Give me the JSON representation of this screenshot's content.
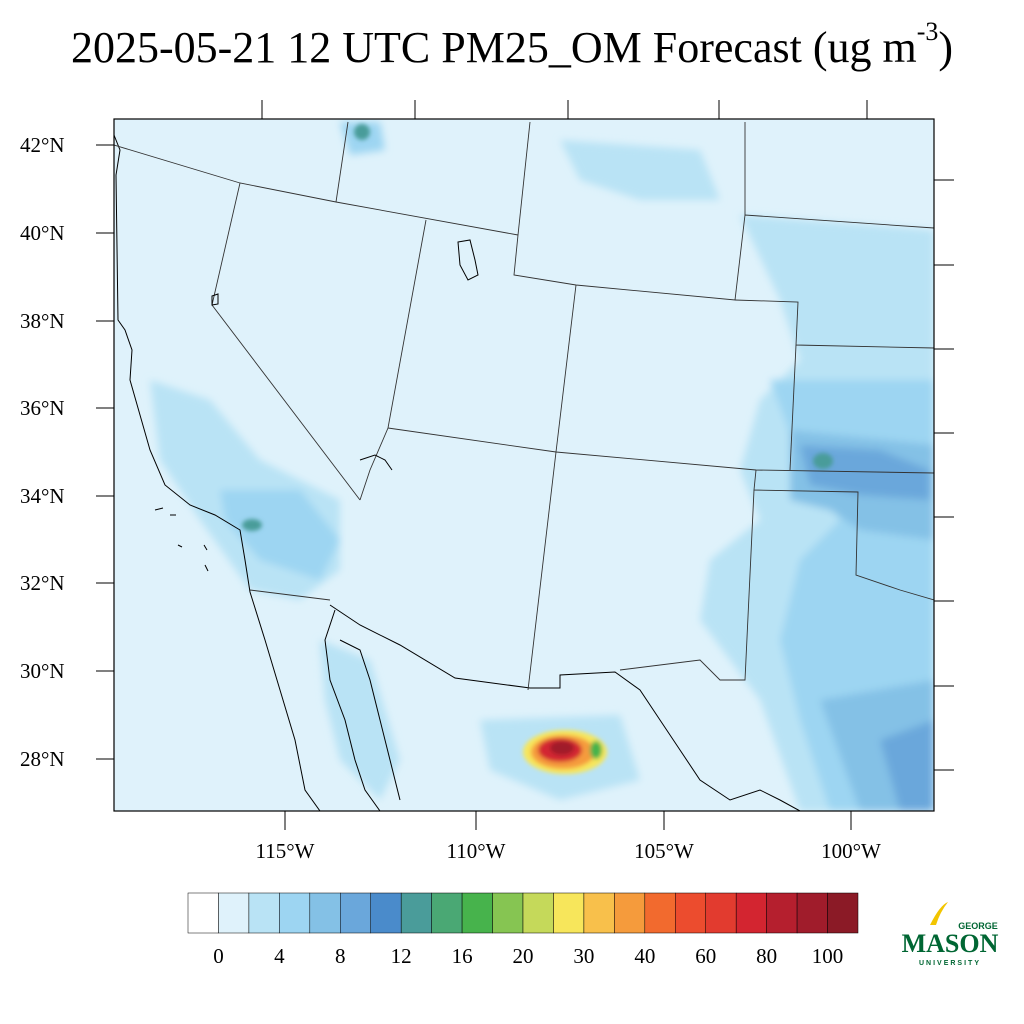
{
  "title": {
    "main": "2025-05-21 12 UTC PM25_OM Forecast (ug m",
    "superscript": "-3",
    "close": ")"
  },
  "map": {
    "latitude_labels": [
      "42°N",
      "40°N",
      "38°N",
      "36°N",
      "34°N",
      "32°N",
      "30°N",
      "28°N"
    ],
    "longitude_labels": [
      "115°W",
      "110°W",
      "105°W",
      "100°W"
    ],
    "colors": {
      "background": "#dff2fb",
      "border": "#000000",
      "state_lines": "#333333"
    }
  },
  "colorbar": {
    "labels": [
      "0",
      "4",
      "8",
      "12",
      "16",
      "20",
      "30",
      "40",
      "60",
      "80",
      "100"
    ],
    "colors": [
      "#ffffff",
      "#dff2fb",
      "#b9e3f5",
      "#9dd5f2",
      "#84c1e6",
      "#6aa7db",
      "#4a8bcb",
      "#4a9c9a",
      "#4aa874",
      "#47b34c",
      "#86c552",
      "#c5d95a",
      "#f7e65b",
      "#f8c04b",
      "#f59b3c",
      "#f26a2e",
      "#ec4c2e",
      "#e23b2f",
      "#d32530",
      "#b51f2e",
      "#a01c2b",
      "#8b1a26"
    ]
  },
  "logo": {
    "top": "GEORGE",
    "middle": "MASON",
    "bottom": "UNIVERSITY",
    "color": "#006633",
    "accent": "#f2c500"
  }
}
